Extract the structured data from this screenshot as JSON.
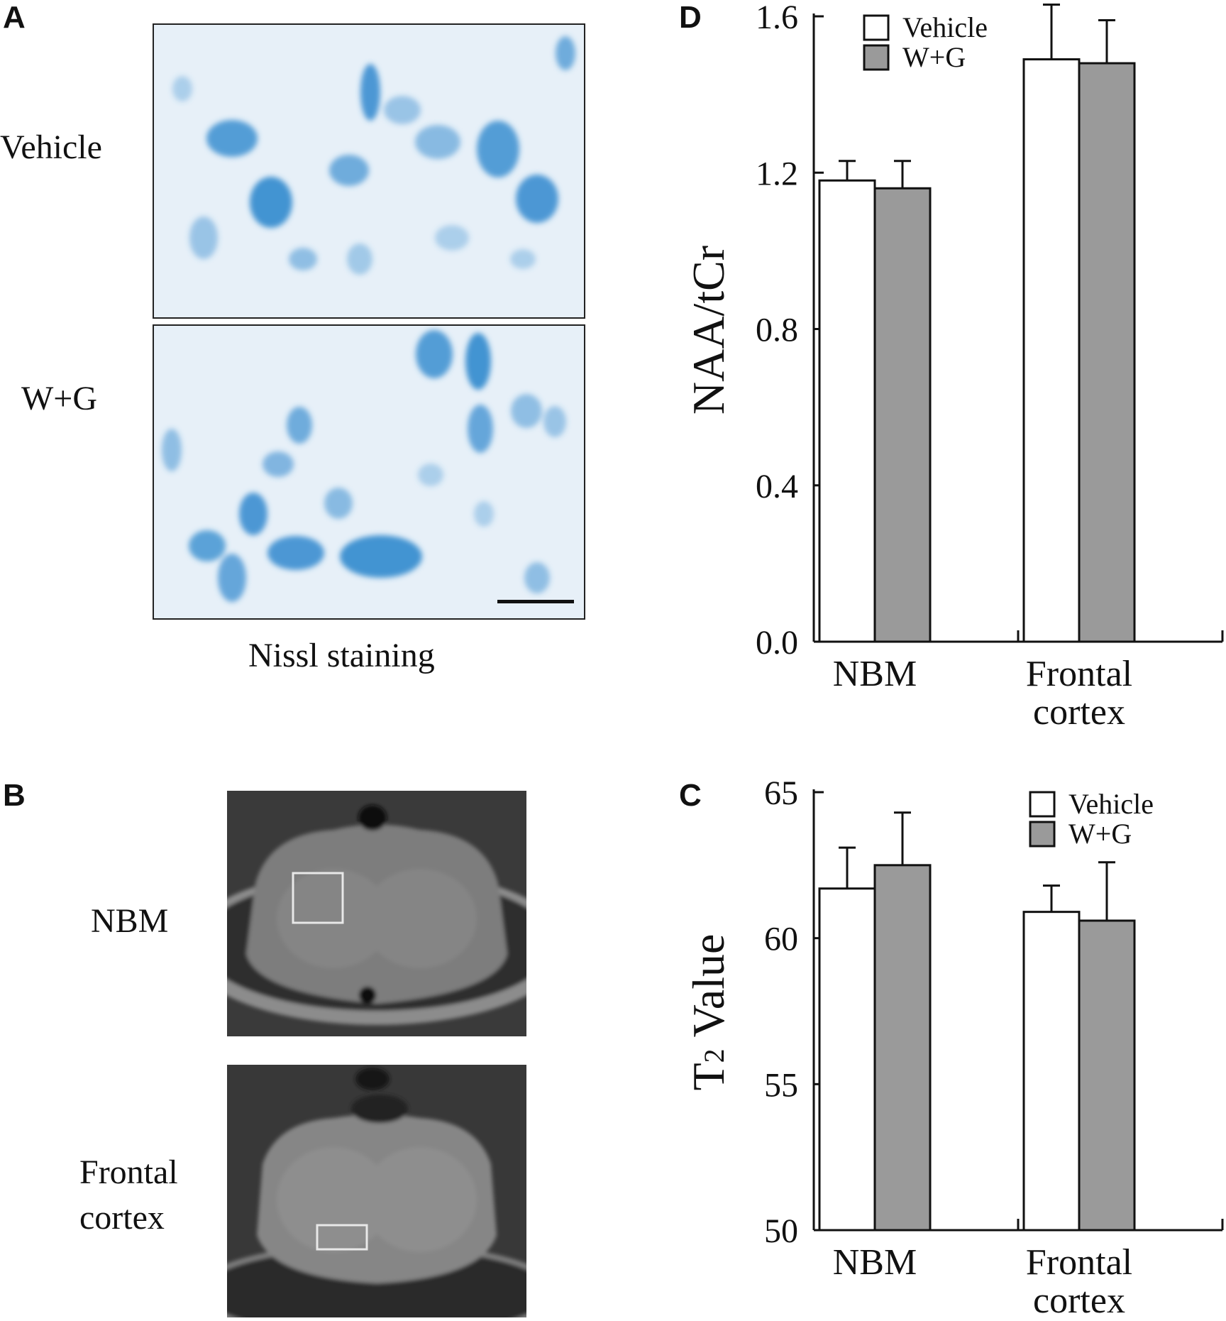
{
  "panels": {
    "A": {
      "letter": "A",
      "row_labels": [
        "Vehicle",
        "W+G"
      ],
      "caption": "Nissl staining"
    },
    "B": {
      "letter": "B",
      "row_labels": [
        "NBM",
        "Frontal cortex"
      ]
    },
    "D": {
      "letter": "D"
    },
    "C": {
      "letter": "C"
    }
  },
  "colors": {
    "vehicle_fill": "#ffffff",
    "wg_fill": "#9a9a9a",
    "nissl_stain": "#2a7fc9",
    "nissl_bg": "#e6f0f8",
    "axis": "#111111"
  },
  "chart_data": [
    {
      "panel": "D",
      "type": "bar",
      "categories": [
        "NBM",
        "Frontal cortex"
      ],
      "series": [
        {
          "name": "Vehicle",
          "values": [
            1.18,
            1.49
          ],
          "errors": [
            0.05,
            0.14
          ],
          "color": "#ffffff"
        },
        {
          "name": "W+G",
          "values": [
            1.16,
            1.48
          ],
          "errors": [
            0.07,
            0.11
          ],
          "color": "#9a9a9a"
        }
      ],
      "ylabel": "NAA/tCr",
      "ylim": [
        0,
        1.6
      ],
      "yticks": [
        "0.0",
        "0.4",
        "0.8",
        "1.2",
        "1.6"
      ],
      "legend": "top-left",
      "grid": false
    },
    {
      "panel": "C",
      "type": "bar",
      "categories": [
        "NBM",
        "Frontal cortex"
      ],
      "series": [
        {
          "name": "Vehicle",
          "values": [
            61.7,
            60.9
          ],
          "errors": [
            1.4,
            0.9
          ],
          "color": "#ffffff"
        },
        {
          "name": "W+G",
          "values": [
            62.5,
            60.6
          ],
          "errors": [
            1.8,
            2.0
          ],
          "color": "#9a9a9a"
        }
      ],
      "ylabel": "T2 Value",
      "ylim": [
        50,
        65
      ],
      "yticks": [
        "50",
        "55",
        "60",
        "65"
      ],
      "legend": "top-right",
      "grid": false
    }
  ]
}
